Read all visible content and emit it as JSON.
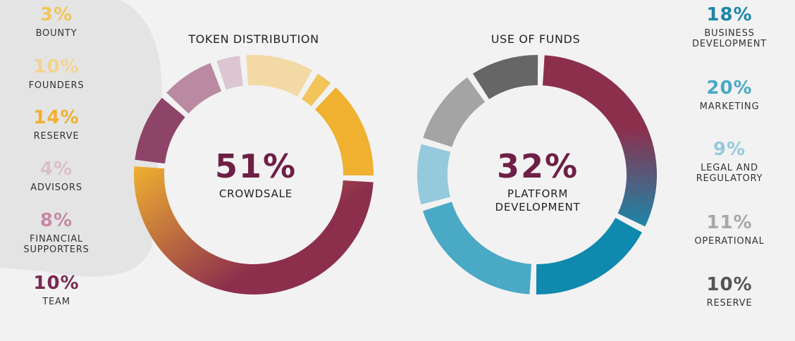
{
  "chart_data": [
    {
      "type": "pie",
      "title": "TOKEN DISTRIBUTION",
      "center": {
        "value": "51%",
        "label": "CROWDSALE"
      },
      "slices": [
        {
          "label": "CROWDSALE",
          "value": 51,
          "display": "51%",
          "color": "#8c2f4d",
          "color2": "#f0b030"
        },
        {
          "label": "TEAM",
          "value": 10,
          "display": "10%",
          "color": "#8e4468"
        },
        {
          "label": "FINANCIAL SUPPORTERS",
          "value": 8,
          "display": "8%",
          "color": "#b98aa1"
        },
        {
          "label": "ADVISORS",
          "value": 4,
          "display": "4%",
          "color": "#dcc6d1"
        },
        {
          "label": "FOUNDERS",
          "value": 10,
          "display": "10%",
          "color": "#f3d9a5"
        },
        {
          "label": "BOUNTY",
          "value": 3,
          "display": "3%",
          "color": "#f1c55c"
        },
        {
          "label": "RESERVE",
          "value": 14,
          "display": "14%",
          "color": "#f0b030"
        }
      ]
    },
    {
      "type": "pie",
      "title": "USE OF FUNDS",
      "center": {
        "value": "32%",
        "label": "PLATFORM DEVELOPMENT"
      },
      "slices": [
        {
          "label": "PLATFORM DEVELOPMENT",
          "value": 32,
          "display": "32%",
          "color": "#8c2f4d",
          "color2": "#1d86a8"
        },
        {
          "label": "BUSINESS DEVELOPMENT",
          "value": 18,
          "display": "18%",
          "color": "#0f89ad"
        },
        {
          "label": "MARKETING",
          "value": 20,
          "display": "20%",
          "color": "#4aa9c5"
        },
        {
          "label": "LEGAL AND REGULATORY",
          "value": 9,
          "display": "9%",
          "color": "#94cadc"
        },
        {
          "label": "OPERATIONAL",
          "value": 11,
          "display": "11%",
          "color": "#a4a4a4"
        },
        {
          "label": "RESERVE",
          "value": 10,
          "display": "10%",
          "color": "#666666"
        }
      ]
    }
  ],
  "legend_left": [
    {
      "value": "3%",
      "label": "BOUNTY",
      "color": "#f1c55c"
    },
    {
      "value": "10%",
      "label": "FOUNDERS",
      "color": "#f5d28f"
    },
    {
      "value": "14%",
      "label": "RESERVE",
      "color": "#f0b030"
    },
    {
      "value": "4%",
      "label": "ADVISORS",
      "color": "#d9bfcc"
    },
    {
      "value": "8%",
      "label": "FINANCIAL SUPPORTERS",
      "color": "#c48aa5"
    },
    {
      "value": "10%",
      "label": "TEAM",
      "color": "#7a2a50"
    }
  ],
  "legend_right": [
    {
      "value": "18%",
      "label": "BUSINESS DEVELOPMENT",
      "color": "#1d86a8"
    },
    {
      "value": "20%",
      "label": "MARKETING",
      "color": "#4aa9c5"
    },
    {
      "value": "9%",
      "label": "LEGAL AND REGULATORY",
      "color": "#94cadc"
    },
    {
      "value": "11%",
      "label": "OPERATIONAL",
      "color": "#a8a8a8"
    },
    {
      "value": "10%",
      "label": "RESERVE",
      "color": "#555555"
    }
  ]
}
